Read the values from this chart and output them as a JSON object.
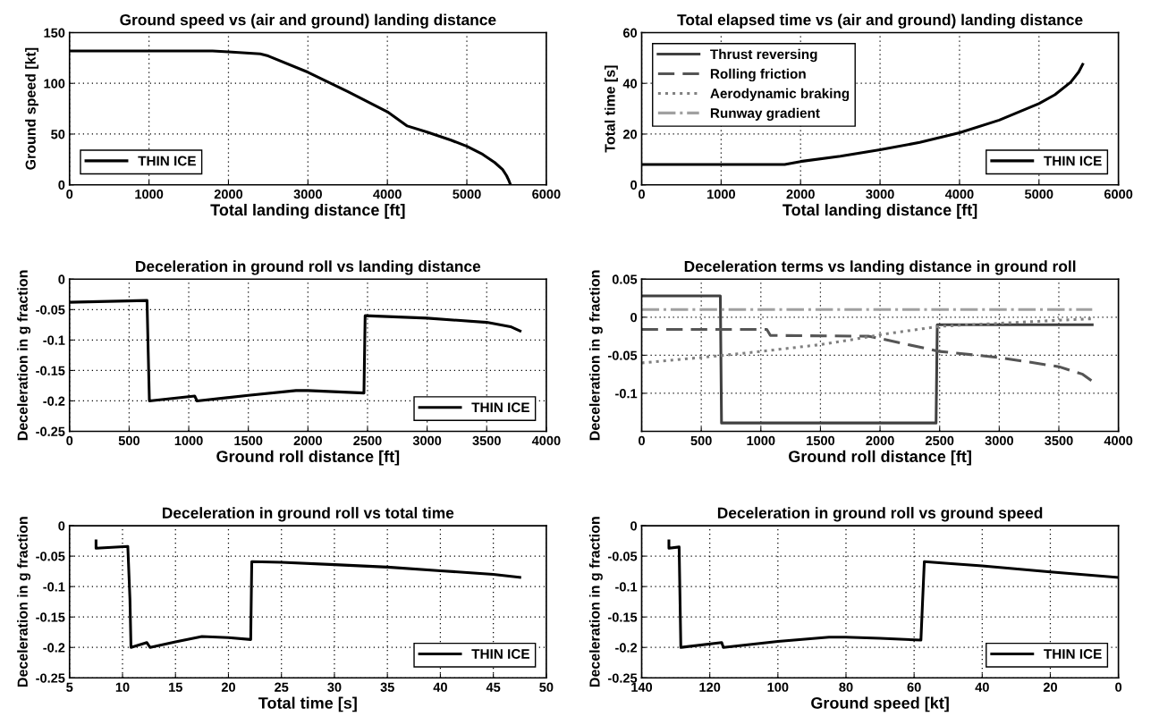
{
  "chart_data": [
    {
      "type": "line",
      "title": "Ground speed vs (air and ground) landing distance",
      "xlabel": "Total landing distance [ft]",
      "ylabel": "Ground speed [kt]",
      "xlim": [
        0,
        6000
      ],
      "xticks": [
        0,
        1000,
        2000,
        3000,
        4000,
        5000,
        6000
      ],
      "ylim": [
        0,
        150
      ],
      "yticks": [
        0,
        50,
        100,
        150
      ],
      "grid": true,
      "legend": "bottom left",
      "series": [
        {
          "name": "THIN ICE",
          "color": "#000000",
          "line_style": "solid",
          "x": [
            0,
            1800,
            2000,
            2400,
            2500,
            3000,
            3500,
            4000,
            4250,
            4500,
            4800,
            5000,
            5200,
            5350,
            5450,
            5500,
            5530,
            5550
          ],
          "values": [
            132,
            132,
            131,
            129,
            127,
            111,
            92,
            72,
            58,
            52,
            44,
            38,
            30,
            22,
            15,
            9,
            4,
            0
          ]
        }
      ]
    },
    {
      "type": "line",
      "title": "Total elapsed time vs (air and ground) landing distance",
      "xlabel": "Total landing distance [ft]",
      "ylabel": "Total time [s]",
      "xlim": [
        0,
        6000
      ],
      "xticks": [
        0,
        1000,
        2000,
        3000,
        4000,
        5000,
        6000
      ],
      "ylim": [
        0,
        60
      ],
      "yticks": [
        0,
        20,
        40,
        60
      ],
      "grid": true,
      "legend": [
        "top left",
        "bottom right"
      ],
      "series": [
        {
          "name": "Thrust reversing",
          "color": "#404040",
          "line_style": "solid"
        },
        {
          "name": "Rolling friction",
          "color": "#555555",
          "line_style": "dashed"
        },
        {
          "name": "Aerodynamic braking",
          "color": "#808080",
          "line_style": "dotted"
        },
        {
          "name": "Runway gradient",
          "color": "#a0a0a0",
          "line_style": "dashdot"
        },
        {
          "name": "THIN ICE",
          "color": "#000000",
          "line_style": "solid",
          "x": [
            0,
            1800,
            2000,
            2500,
            3000,
            3500,
            4000,
            4500,
            5000,
            5200,
            5400,
            5500,
            5550
          ],
          "values": [
            8,
            8,
            9.2,
            11.3,
            13.8,
            16.7,
            20.5,
            25.5,
            32,
            35.5,
            40.5,
            44.5,
            47.5
          ]
        }
      ]
    },
    {
      "type": "line",
      "title": "Deceleration in ground roll vs landing distance",
      "xlabel": "Ground roll distance [ft]",
      "ylabel": "Deceleration in g fraction",
      "xlim": [
        0,
        4000
      ],
      "xticks": [
        0,
        500,
        1000,
        1500,
        2000,
        2500,
        3000,
        3500,
        4000
      ],
      "ylim": [
        -0.25,
        0
      ],
      "yticks": [
        -0.25,
        -0.2,
        -0.15,
        -0.1,
        -0.05,
        0
      ],
      "grid": true,
      "legend": "bottom right",
      "series": [
        {
          "name": "THIN ICE",
          "color": "#000000",
          "line_style": "solid",
          "x": [
            0,
            650,
            660,
            670,
            1050,
            1070,
            1500,
            1900,
            2000,
            2470,
            2480,
            3000,
            3500,
            3700,
            3780
          ],
          "values": [
            -0.038,
            -0.035,
            -0.12,
            -0.2,
            -0.192,
            -0.2,
            -0.191,
            -0.183,
            -0.183,
            -0.187,
            -0.06,
            -0.064,
            -0.071,
            -0.078,
            -0.085
          ]
        }
      ]
    },
    {
      "type": "line",
      "title": "Deceleration terms vs landing distance in ground roll",
      "xlabel": "Ground roll distance [ft]",
      "ylabel": "Deceleration in g fraction",
      "xlim": [
        0,
        4000
      ],
      "xticks": [
        0,
        500,
        1000,
        1500,
        2000,
        2500,
        3000,
        3500,
        4000
      ],
      "ylim": [
        -0.15,
        0.05
      ],
      "yticks": [
        -0.1,
        -0.05,
        0,
        0.05
      ],
      "grid": true,
      "series": [
        {
          "color": "#404040",
          "line_style": "solid",
          "x": [
            0,
            660,
            670,
            2470,
            2480,
            3780
          ],
          "values": [
            0.028,
            0.028,
            -0.139,
            -0.139,
            -0.01,
            -0.01
          ]
        },
        {
          "color": "#555555",
          "line_style": "dashed",
          "x": [
            0,
            1050,
            1080,
            1900,
            2000,
            2500,
            3000,
            3500,
            3700,
            3780
          ],
          "values": [
            -0.016,
            -0.016,
            -0.024,
            -0.025,
            -0.028,
            -0.045,
            -0.053,
            -0.065,
            -0.075,
            -0.084
          ]
        },
        {
          "color": "#808080",
          "line_style": "dotted",
          "x": [
            0,
            500,
            1000,
            1500,
            1900,
            2000,
            2500,
            3000,
            3500,
            3780
          ],
          "values": [
            -0.06,
            -0.053,
            -0.045,
            -0.036,
            -0.026,
            -0.023,
            -0.012,
            -0.008,
            -0.004,
            -0.002
          ]
        },
        {
          "color": "#a0a0a0",
          "line_style": "dashdot",
          "x": [
            0,
            3780
          ],
          "values": [
            0.01,
            0.01
          ]
        }
      ]
    },
    {
      "type": "line",
      "title": "Deceleration in ground roll vs total time",
      "xlabel": "Total time [s]",
      "ylabel": "Deceleration in g fraction",
      "xlim": [
        5,
        50
      ],
      "xticks": [
        5,
        10,
        15,
        20,
        25,
        30,
        35,
        40,
        45,
        50
      ],
      "ylim": [
        -0.25,
        0
      ],
      "yticks": [
        -0.25,
        -0.2,
        -0.15,
        -0.1,
        -0.05,
        0
      ],
      "grid": true,
      "legend": "bottom right",
      "series": [
        {
          "name": "THIN ICE",
          "color": "#000000",
          "line_style": "solid",
          "x": [
            7.5,
            7.5,
            10.5,
            10.7,
            10.8,
            12.3,
            12.6,
            15,
            17.5,
            20,
            22.1,
            22.2,
            25,
            30,
            35,
            40,
            45,
            47.5
          ],
          "values": [
            -0.025,
            -0.037,
            -0.034,
            -0.12,
            -0.2,
            -0.192,
            -0.2,
            -0.191,
            -0.182,
            -0.184,
            -0.187,
            -0.059,
            -0.06,
            -0.064,
            -0.068,
            -0.074,
            -0.08,
            -0.085
          ]
        }
      ]
    },
    {
      "type": "line",
      "title": "Deceleration in ground roll vs ground speed",
      "xlabel": "Ground speed [kt]",
      "ylabel": "Deceleration in g fraction",
      "xlim": [
        140,
        0
      ],
      "xticks": [
        140,
        120,
        100,
        80,
        60,
        40,
        20,
        0
      ],
      "ylim": [
        -0.25,
        0
      ],
      "yticks": [
        -0.25,
        -0.2,
        -0.15,
        -0.1,
        -0.05,
        0
      ],
      "grid": true,
      "legend": "bottom right",
      "series": [
        {
          "name": "THIN ICE",
          "color": "#000000",
          "line_style": "solid",
          "x": [
            132,
            132,
            129,
            128.5,
            116.5,
            116,
            100,
            85,
            80,
            70,
            58,
            57.5,
            57,
            50,
            40,
            20,
            0
          ],
          "values": [
            -0.025,
            -0.037,
            -0.035,
            -0.2,
            -0.192,
            -0.2,
            -0.19,
            -0.183,
            -0.183,
            -0.185,
            -0.188,
            -0.123,
            -0.059,
            -0.062,
            -0.066,
            -0.076,
            -0.085
          ]
        }
      ]
    }
  ]
}
